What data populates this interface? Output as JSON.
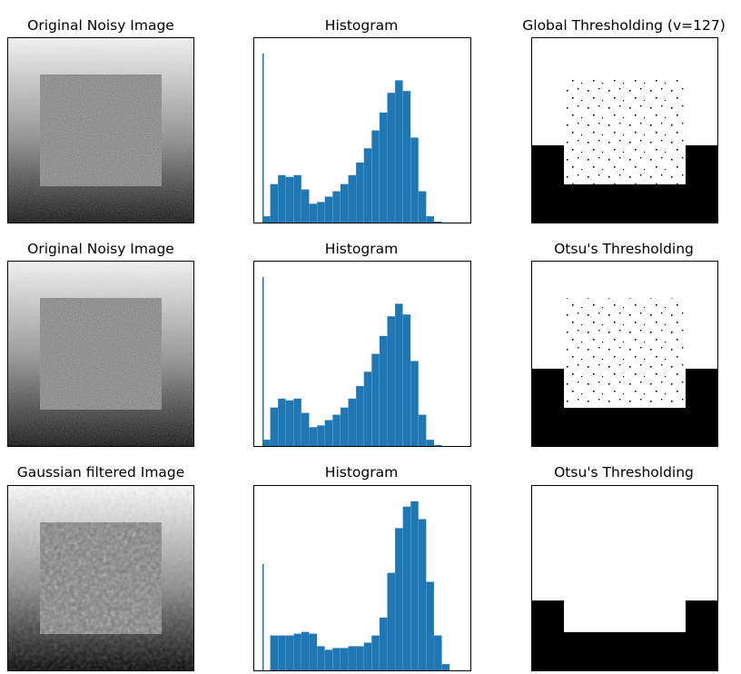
{
  "titles": {
    "r0c0": "Original Noisy Image",
    "r0c1": "Histogram",
    "r0c2": "Global Thresholding (v=127)",
    "r1c0": "Original Noisy Image",
    "r1c1": "Histogram",
    "r1c2": "Otsu's Thresholding",
    "r2c0": "Gaussian filtered Image",
    "r2c1": "Histogram",
    "r2c2": "Otsu's Thresholding"
  },
  "colors": {
    "hist": "#1f77b4",
    "frame": "#000000",
    "background": "#ffffff"
  },
  "chart_data": [
    {
      "type": "image",
      "title": "Original Noisy Image",
      "content": "noisy-square-gradient"
    },
    {
      "type": "bar",
      "title": "Histogram",
      "xlim": [
        0,
        256
      ],
      "ylim": [
        0,
        1
      ],
      "note_values": "relative counts estimated",
      "x": [
        0,
        10,
        20,
        30,
        40,
        50,
        60,
        70,
        80,
        90,
        100,
        110,
        120,
        130,
        140,
        150,
        160,
        170,
        180,
        190,
        200,
        210,
        220,
        230,
        240,
        250
      ],
      "values": [
        0.04,
        0.22,
        0.27,
        0.26,
        0.27,
        0.19,
        0.11,
        0.12,
        0.15,
        0.18,
        0.22,
        0.27,
        0.34,
        0.42,
        0.52,
        0.62,
        0.73,
        0.8,
        0.74,
        0.48,
        0.18,
        0.04,
        0.01,
        0.0,
        0.0,
        0.0
      ],
      "spike": {
        "x": 0,
        "value": 0.95
      }
    },
    {
      "type": "image",
      "title": "Global Thresholding (v=127)",
      "content": "binary-threshold"
    },
    {
      "type": "image",
      "title": "Original Noisy Image",
      "content": "noisy-square-gradient"
    },
    {
      "type": "bar",
      "title": "Histogram",
      "xlim": [
        0,
        256
      ],
      "ylim": [
        0,
        1
      ],
      "x": [
        0,
        10,
        20,
        30,
        40,
        50,
        60,
        70,
        80,
        90,
        100,
        110,
        120,
        130,
        140,
        150,
        160,
        170,
        180,
        190,
        200,
        210,
        220,
        230,
        240,
        250
      ],
      "values": [
        0.04,
        0.22,
        0.27,
        0.26,
        0.27,
        0.19,
        0.11,
        0.12,
        0.15,
        0.18,
        0.22,
        0.27,
        0.34,
        0.42,
        0.52,
        0.62,
        0.73,
        0.8,
        0.74,
        0.48,
        0.18,
        0.04,
        0.01,
        0.0,
        0.0,
        0.0
      ],
      "spike": {
        "x": 0,
        "value": 0.95
      }
    },
    {
      "type": "image",
      "title": "Otsu's Thresholding",
      "content": "binary-threshold"
    },
    {
      "type": "image",
      "title": "Gaussian filtered Image",
      "content": "blurred-square-gradient"
    },
    {
      "type": "bar",
      "title": "Histogram",
      "xlim": [
        0,
        256
      ],
      "ylim": [
        0,
        1
      ],
      "x": [
        0,
        10,
        20,
        30,
        40,
        50,
        60,
        70,
        80,
        90,
        100,
        110,
        120,
        130,
        140,
        150,
        160,
        170,
        180,
        190,
        200,
        210,
        220,
        230,
        240,
        250
      ],
      "values": [
        0.0,
        0.2,
        0.2,
        0.2,
        0.21,
        0.22,
        0.21,
        0.14,
        0.12,
        0.13,
        0.13,
        0.14,
        0.14,
        0.16,
        0.2,
        0.3,
        0.55,
        0.8,
        0.92,
        0.95,
        0.85,
        0.5,
        0.2,
        0.04,
        0.0,
        0.0
      ],
      "spike": {
        "x": 0,
        "value": 0.6
      }
    },
    {
      "type": "image",
      "title": "Otsu's Thresholding",
      "content": "binary-threshold-clean"
    }
  ]
}
